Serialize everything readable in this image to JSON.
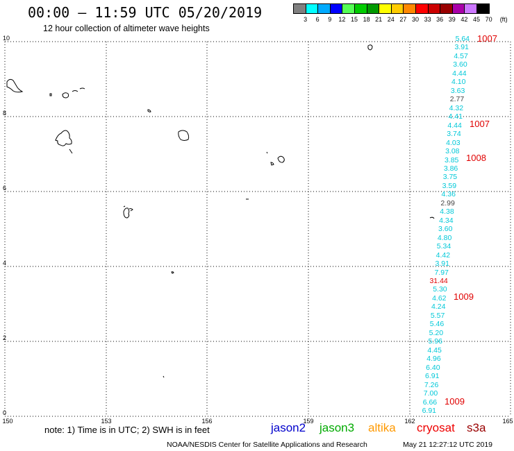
{
  "header": {
    "title": "00:00 – 11:59 UTC 05/20/2019",
    "subtitle": "12 hour collection of altimeter wave heights"
  },
  "colorbar": {
    "colors": [
      "#808080",
      "#00ffff",
      "#00aaff",
      "#0000ff",
      "#55ff55",
      "#00cc00",
      "#009900",
      "#ffff00",
      "#ffcc00",
      "#ff8800",
      "#ff0000",
      "#cc0000",
      "#990000",
      "#aa00aa",
      "#cc77ff",
      "#000000"
    ],
    "labels": [
      "3",
      "6",
      "9",
      "12",
      "15",
      "18",
      "21",
      "24",
      "27",
      "30",
      "33",
      "36",
      "39",
      "42",
      "45",
      "70",
      "(ft)"
    ]
  },
  "axes": {
    "y_ticks": [
      "10",
      "8",
      "6",
      "4",
      "2",
      "0"
    ],
    "x_ticks": [
      "150",
      "153",
      "156",
      "159",
      "162",
      "165"
    ]
  },
  "readings": [
    {
      "text": "5.64",
      "color": "cyan"
    },
    {
      "text": "3.91",
      "color": "cyan"
    },
    {
      "text": "4.57",
      "color": "cyan"
    },
    {
      "text": "3.60",
      "color": "cyan"
    },
    {
      "text": "4.44",
      "color": "cyan"
    },
    {
      "text": "4.10",
      "color": "cyan"
    },
    {
      "text": "3.63",
      "color": "cyan"
    },
    {
      "text": "2.77",
      "color": "gray"
    },
    {
      "text": "4.32",
      "color": "cyan"
    },
    {
      "text": "4.41",
      "color": "cyan"
    },
    {
      "text": "4.44",
      "color": "cyan"
    },
    {
      "text": "3.74",
      "color": "cyan"
    },
    {
      "text": "4.03",
      "color": "cyan"
    },
    {
      "text": "3.08",
      "color": "cyan"
    },
    {
      "text": "3.85",
      "color": "cyan"
    },
    {
      "text": "3.86",
      "color": "cyan"
    },
    {
      "text": "3.75",
      "color": "cyan"
    },
    {
      "text": "3.59",
      "color": "cyan"
    },
    {
      "text": "4.36",
      "color": "cyan"
    },
    {
      "text": "2.99",
      "color": "gray"
    },
    {
      "text": "4.38",
      "color": "cyan"
    },
    {
      "text": "4.34",
      "color": "cyan"
    },
    {
      "text": "3.60",
      "color": "cyan"
    },
    {
      "text": "4.80",
      "color": "cyan"
    },
    {
      "text": "5.34",
      "color": "cyan"
    },
    {
      "text": "4.42",
      "color": "cyan"
    },
    {
      "text": "3.91",
      "color": "cyan"
    },
    {
      "text": "7.97",
      "color": "cyan"
    },
    {
      "text": "31.44",
      "color": "red"
    },
    {
      "text": "5.30",
      "color": "cyan"
    },
    {
      "text": "4.62",
      "color": "cyan"
    },
    {
      "text": "4.24",
      "color": "cyan"
    },
    {
      "text": "5.57",
      "color": "cyan"
    },
    {
      "text": "5.46",
      "color": "cyan"
    },
    {
      "text": "5.20",
      "color": "cyan"
    },
    {
      "text": "5.96",
      "color": "cyan"
    },
    {
      "text": "4.45",
      "color": "cyan"
    },
    {
      "text": "4.96",
      "color": "cyan"
    },
    {
      "text": "6.40",
      "color": "cyan"
    },
    {
      "text": "6.91",
      "color": "cyan"
    },
    {
      "text": "7.26",
      "color": "cyan"
    },
    {
      "text": "7.00",
      "color": "cyan"
    },
    {
      "text": "6.66",
      "color": "cyan"
    },
    {
      "text": "6.91",
      "color": "cyan"
    }
  ],
  "pressures": [
    "1007",
    "1007",
    "1008",
    "1009",
    "1009"
  ],
  "note": "note: 1) Time is in UTC; 2) SWH is in feet",
  "satellites": [
    {
      "name": "jason2",
      "color": "#0000cc"
    },
    {
      "name": "jason3",
      "color": "#00aa00"
    },
    {
      "name": "altika",
      "color": "#ff9900"
    },
    {
      "name": "cryosat",
      "color": "#ee0000"
    },
    {
      "name": "s3a",
      "color": "#990000"
    }
  ],
  "footer": {
    "agency": "NOAA/NESDIS Center for Satellite Applications and Research",
    "timestamp": "May 21 12:27:12 UTC 2019"
  }
}
